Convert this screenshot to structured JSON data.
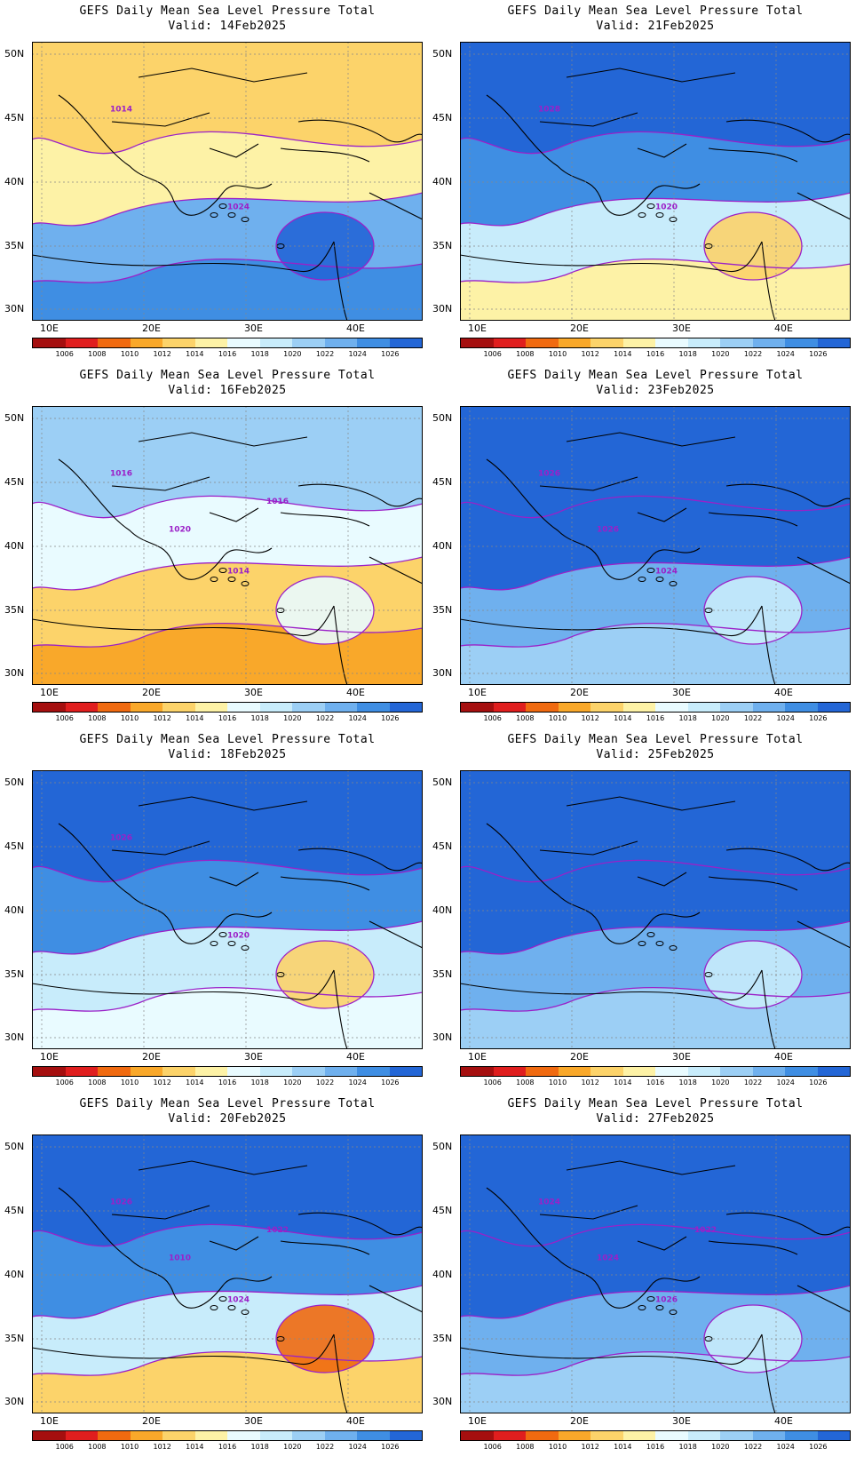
{
  "panel_title": "GEFS Daily Mean Sea Level Pressure Total",
  "valid_prefix": "Valid:",
  "x_ticks": [
    "10E",
    "20E",
    "30E",
    "40E"
  ],
  "y_ticks": [
    "50N",
    "45N",
    "40N",
    "35N",
    "30N"
  ],
  "colorbar": {
    "labels": [
      "1006",
      "1008",
      "1010",
      "1012",
      "1014",
      "1016",
      "1018",
      "1020",
      "1022",
      "1024",
      "1026"
    ],
    "colors": [
      "#a50f0f",
      "#e01e1e",
      "#f06a10",
      "#f9a82a",
      "#fcd36a",
      "#fdf2a6",
      "#e9fbff",
      "#c8ecfb",
      "#9ccff5",
      "#6fb0ee",
      "#3f8ee3",
      "#2366d6"
    ]
  },
  "panels": [
    {
      "valid": "14Feb2025",
      "contour_labels": [
        "1014",
        "1024"
      ],
      "palette": "mix_warm"
    },
    {
      "valid": "21Feb2025",
      "contour_labels": [
        "1028",
        "1020"
      ],
      "palette": "cool_east_warm"
    },
    {
      "valid": "16Feb2025",
      "contour_labels": [
        "1016",
        "1014",
        "1020",
        "1016"
      ],
      "palette": "warm"
    },
    {
      "valid": "23Feb2025",
      "contour_labels": [
        "1026",
        "1024",
        "1026"
      ],
      "palette": "cool"
    },
    {
      "valid": "18Feb2025",
      "contour_labels": [
        "1026",
        "1020"
      ],
      "palette": "mid"
    },
    {
      "valid": "25Feb2025",
      "contour_labels": [],
      "palette": "cool"
    },
    {
      "valid": "20Feb2025",
      "contour_labels": [
        "1026",
        "1024",
        "1010",
        "1022"
      ],
      "palette": "cool_south_warm"
    },
    {
      "valid": "27Feb2025",
      "contour_labels": [
        "1024",
        "1026",
        "1024",
        "1022"
      ],
      "palette": "cool"
    }
  ]
}
